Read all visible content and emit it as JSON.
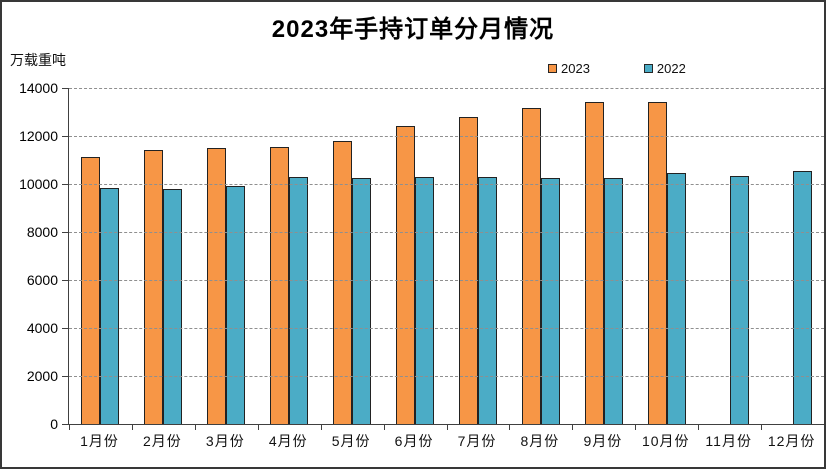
{
  "chart_data": {
    "type": "bar",
    "title": "2023年手持订单分月情况",
    "unit_label": "万载重吨",
    "categories": [
      "1月份",
      "2月份",
      "3月份",
      "4月份",
      "5月份",
      "6月份",
      "7月份",
      "8月份",
      "9月份",
      "10月份",
      "11月份",
      "12月份"
    ],
    "series": [
      {
        "name": "2023",
        "color": "#F79646",
        "values": [
          11120,
          11400,
          11490,
          11530,
          11780,
          12400,
          12810,
          13180,
          13430,
          13420,
          null,
          null
        ]
      },
      {
        "name": "2022",
        "color": "#4BACC6",
        "values": [
          9820,
          9780,
          9920,
          10280,
          10250,
          10310,
          10310,
          10240,
          10270,
          10450,
          10350,
          10530
        ]
      }
    ],
    "ylim": [
      0,
      14000
    ],
    "yticks": [
      0,
      2000,
      4000,
      6000,
      8000,
      10000,
      12000,
      14000
    ],
    "grid": "horizontal-dashed",
    "legend_position": "top-right-inside",
    "xlabel": "",
    "ylabel": "万载重吨"
  },
  "colors": {
    "bar_2023": "#F79646",
    "bar_2022": "#4BACC6",
    "bar_border": "#222222",
    "gridline": "#8f8f8f",
    "axis": "#404040",
    "frame_border": "#383838",
    "background": "#ffffff"
  }
}
